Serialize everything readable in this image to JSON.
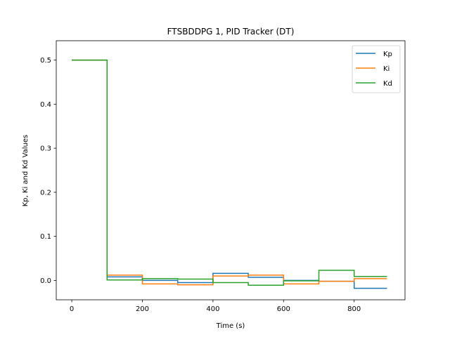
{
  "chart_data": {
    "type": "line",
    "title": "FTSBDDPG 1, PID Tracker (DT)",
    "xlabel": "Time (s)",
    "ylabel": "Kp, Ki and Kd Values",
    "xlim": [
      -44,
      944
    ],
    "ylim": [
      -0.044,
      0.544
    ],
    "xticks": [
      0,
      200,
      400,
      600,
      800
    ],
    "yticks": [
      0.0,
      0.1,
      0.2,
      0.3,
      0.4,
      0.5
    ],
    "ytick_labels": [
      "0.0",
      "0.1",
      "0.2",
      "0.3",
      "0.4",
      "0.5"
    ],
    "legend_position": "top-right",
    "step": "post",
    "x": [
      0,
      100,
      200,
      300,
      400,
      500,
      600,
      700,
      800,
      893
    ],
    "series": [
      {
        "name": "Kp",
        "color": "#1f77b4",
        "values": [
          0.5,
          0.008,
          0.0,
          -0.005,
          0.016,
          0.007,
          0.0,
          -0.002,
          -0.018,
          -0.018
        ]
      },
      {
        "name": "Ki",
        "color": "#ff7f0e",
        "values": [
          0.5,
          0.012,
          -0.008,
          -0.01,
          0.01,
          0.012,
          -0.008,
          -0.002,
          0.004,
          0.004
        ]
      },
      {
        "name": "Kd",
        "color": "#2ca02c",
        "values": [
          0.5,
          0.001,
          0.004,
          0.003,
          -0.005,
          -0.011,
          -0.001,
          0.023,
          0.009,
          0.009
        ]
      }
    ]
  }
}
